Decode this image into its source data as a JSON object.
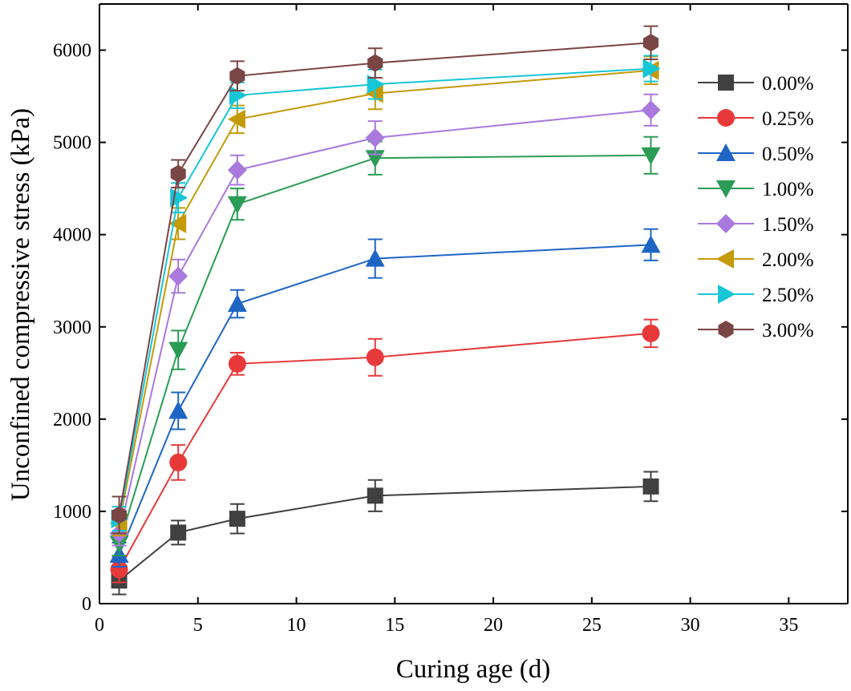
{
  "chart_data": {
    "type": "line",
    "title": "",
    "xlabel": "Curing age (d)",
    "ylabel": "Unconfined compressive stress (kPa)",
    "xlim": [
      0,
      38
    ],
    "ylim": [
      0,
      6500
    ],
    "xticks": [
      0,
      5,
      10,
      15,
      20,
      25,
      30,
      35
    ],
    "yticks": [
      0,
      1000,
      2000,
      3000,
      4000,
      5000,
      6000
    ],
    "x": [
      1,
      4,
      7,
      14,
      28
    ],
    "grid": false,
    "legend_position": "right",
    "series": [
      {
        "name": "0.00%",
        "color": "#404040",
        "marker": "square",
        "values": [
          250,
          770,
          920,
          1170,
          1270
        ],
        "errors": [
          150,
          130,
          160,
          170,
          160
        ]
      },
      {
        "name": "0.25%",
        "color": "#e8393a",
        "marker": "circle",
        "values": [
          370,
          1530,
          2600,
          2670,
          2930
        ],
        "errors": [
          140,
          190,
          120,
          200,
          150
        ]
      },
      {
        "name": "0.50%",
        "color": "#1f66c4",
        "marker": "triangle-up",
        "values": [
          530,
          2090,
          3250,
          3740,
          3890
        ],
        "errors": [
          130,
          200,
          150,
          210,
          170
        ]
      },
      {
        "name": "1.00%",
        "color": "#2a9c55",
        "marker": "triangle-down",
        "values": [
          650,
          2750,
          4330,
          4830,
          4860
        ],
        "errors": [
          130,
          210,
          170,
          180,
          200
        ]
      },
      {
        "name": "1.50%",
        "color": "#a979dd",
        "marker": "diamond",
        "values": [
          760,
          3550,
          4700,
          5050,
          5350
        ],
        "errors": [
          130,
          180,
          160,
          180,
          170
        ]
      },
      {
        "name": "2.00%",
        "color": "#c49a09",
        "marker": "triangle-left",
        "values": [
          870,
          4120,
          5250,
          5530,
          5780
        ],
        "errors": [
          130,
          170,
          150,
          170,
          150
        ]
      },
      {
        "name": "2.50%",
        "color": "#16c6d6",
        "marker": "triangle-right",
        "values": [
          920,
          4400,
          5510,
          5630,
          5800
        ],
        "errors": [
          130,
          160,
          140,
          160,
          140
        ]
      },
      {
        "name": "3.00%",
        "color": "#7a4545",
        "marker": "hexagon",
        "values": [
          960,
          4660,
          5720,
          5860,
          6080
        ],
        "errors": [
          200,
          150,
          160,
          160,
          180
        ]
      }
    ]
  }
}
